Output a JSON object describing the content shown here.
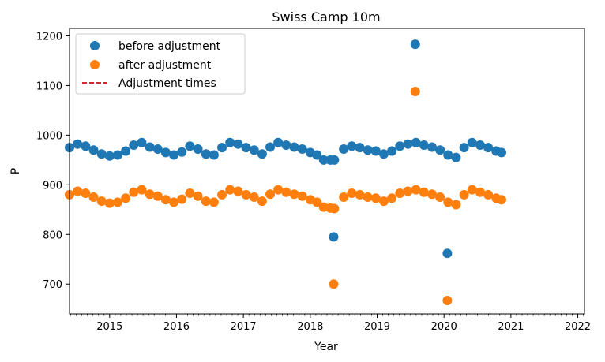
{
  "chart_data": {
    "type": "scatter",
    "title": "Swiss Camp 10m",
    "xlabel": "Year",
    "ylabel": "P",
    "xlim": [
      2014.4,
      2022.1
    ],
    "ylim": [
      640,
      1215
    ],
    "x_ticks": [
      2015,
      2016,
      2017,
      2018,
      2019,
      2020,
      2021,
      2022
    ],
    "x_tick_labels": [
      "2015",
      "2016",
      "2017",
      "2018",
      "2019",
      "2020",
      "2021",
      "2022"
    ],
    "y_ticks": [
      700,
      800,
      900,
      1000,
      1100,
      1200
    ],
    "y_tick_labels": [
      "700",
      "800",
      "900",
      "1000",
      "1100",
      "1200"
    ],
    "grid": false,
    "legend_position": "top-left",
    "legend": [
      {
        "label": "before adjustment",
        "marker": "circle",
        "color": "#1f77b4"
      },
      {
        "label": "after adjustment",
        "marker": "circle",
        "color": "#ff7f0e"
      },
      {
        "label": "Adjustment times",
        "marker": "dashed-line",
        "color": "#d62728"
      }
    ],
    "series": [
      {
        "name": "before adjustment",
        "color": "#1f77b4",
        "x": [
          2014.4,
          2014.52,
          2014.64,
          2014.76,
          2014.88,
          2015.0,
          2015.12,
          2015.24,
          2015.36,
          2015.48,
          2015.6,
          2015.72,
          2015.84,
          2015.96,
          2016.08,
          2016.2,
          2016.32,
          2016.44,
          2016.56,
          2016.68,
          2016.8,
          2016.92,
          2017.04,
          2017.16,
          2017.28,
          2017.4,
          2017.52,
          2017.64,
          2017.76,
          2017.88,
          2018.0,
          2018.1,
          2018.2,
          2018.3,
          2018.36,
          2018.5,
          2018.62,
          2018.74,
          2018.86,
          2018.98,
          2019.1,
          2019.22,
          2019.34,
          2019.46,
          2019.58,
          2019.7,
          2019.82,
          2019.94,
          2020.06,
          2020.18,
          2020.3,
          2020.42,
          2020.54,
          2020.66,
          2020.78,
          2020.86,
          2018.35,
          2019.57,
          2020.05
        ],
        "y": [
          975,
          982,
          978,
          970,
          962,
          958,
          960,
          968,
          980,
          985,
          976,
          972,
          965,
          960,
          966,
          978,
          972,
          962,
          960,
          975,
          985,
          982,
          975,
          970,
          962,
          976,
          985,
          980,
          976,
          972,
          965,
          960,
          950,
          950,
          950,
          972,
          978,
          975,
          970,
          968,
          962,
          968,
          978,
          982,
          985,
          980,
          976,
          970,
          960,
          955,
          975,
          985,
          980,
          975,
          968,
          965,
          795,
          1183,
          762
        ]
      },
      {
        "name": "after adjustment",
        "color": "#ff7f0e",
        "x": [
          2014.4,
          2014.52,
          2014.64,
          2014.76,
          2014.88,
          2015.0,
          2015.12,
          2015.24,
          2015.36,
          2015.48,
          2015.6,
          2015.72,
          2015.84,
          2015.96,
          2016.08,
          2016.2,
          2016.32,
          2016.44,
          2016.56,
          2016.68,
          2016.8,
          2016.92,
          2017.04,
          2017.16,
          2017.28,
          2017.4,
          2017.52,
          2017.64,
          2017.76,
          2017.88,
          2018.0,
          2018.1,
          2018.2,
          2018.3,
          2018.36,
          2018.5,
          2018.62,
          2018.74,
          2018.86,
          2018.98,
          2019.1,
          2019.22,
          2019.34,
          2019.46,
          2019.58,
          2019.7,
          2019.82,
          2019.94,
          2020.06,
          2020.18,
          2020.3,
          2020.42,
          2020.54,
          2020.66,
          2020.78,
          2020.86,
          2018.35,
          2019.57,
          2020.05
        ],
        "y": [
          880,
          887,
          883,
          875,
          867,
          863,
          865,
          873,
          885,
          890,
          881,
          877,
          870,
          865,
          871,
          883,
          877,
          867,
          865,
          880,
          890,
          887,
          880,
          875,
          867,
          881,
          890,
          885,
          881,
          877,
          870,
          865,
          855,
          853,
          852,
          875,
          883,
          880,
          875,
          873,
          867,
          873,
          883,
          887,
          890,
          885,
          881,
          875,
          865,
          860,
          880,
          890,
          885,
          880,
          873,
          870,
          700,
          1088,
          667
        ]
      }
    ]
  }
}
